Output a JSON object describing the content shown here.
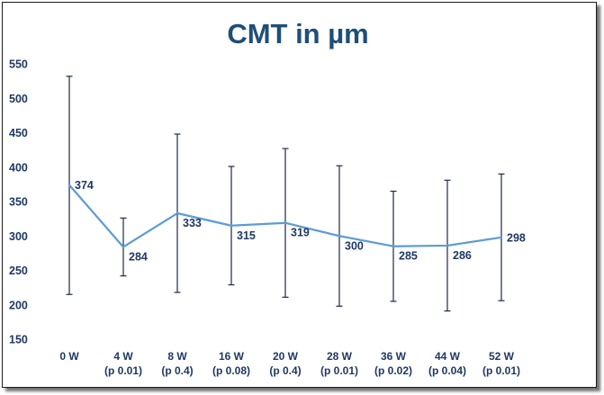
{
  "chart_data": {
    "type": "line",
    "title": "CMT in µm",
    "xlabel": "",
    "ylabel": "",
    "ylim": [
      150,
      550
    ],
    "yticks": [
      150,
      200,
      250,
      300,
      350,
      400,
      450,
      500,
      550
    ],
    "grid": false,
    "legend": "none",
    "categories": [
      [
        "0 W"
      ],
      [
        "4 W",
        "(p 0.01)"
      ],
      [
        "8 W",
        "(p 0.4)"
      ],
      [
        "16 W",
        "(p 0.08)"
      ],
      [
        "20 W",
        "(p 0.4)"
      ],
      [
        "28 W",
        "(p 0.01)"
      ],
      [
        "36 W",
        "(p 0.02)"
      ],
      [
        "44 W",
        "(p 0.04)"
      ],
      [
        "52 W",
        "(p 0.01)"
      ]
    ],
    "series": [
      {
        "values": [
          374,
          284,
          333,
          315,
          319,
          300,
          285,
          286,
          298
        ],
        "data_labels": [
          "374",
          "284",
          "333",
          "315",
          "319",
          "300",
          "285",
          "286",
          "298"
        ],
        "error_low": [
          215,
          242,
          218,
          229,
          211,
          198,
          205,
          191,
          206
        ],
        "error_high": [
          532,
          326,
          448,
          401,
          427,
          402,
          365,
          381,
          390
        ]
      }
    ],
    "colors": {
      "line": "#5b9bd5",
      "error_bars": "#1f2a44",
      "text": "#1f3864",
      "title": "#1f4e79"
    }
  }
}
